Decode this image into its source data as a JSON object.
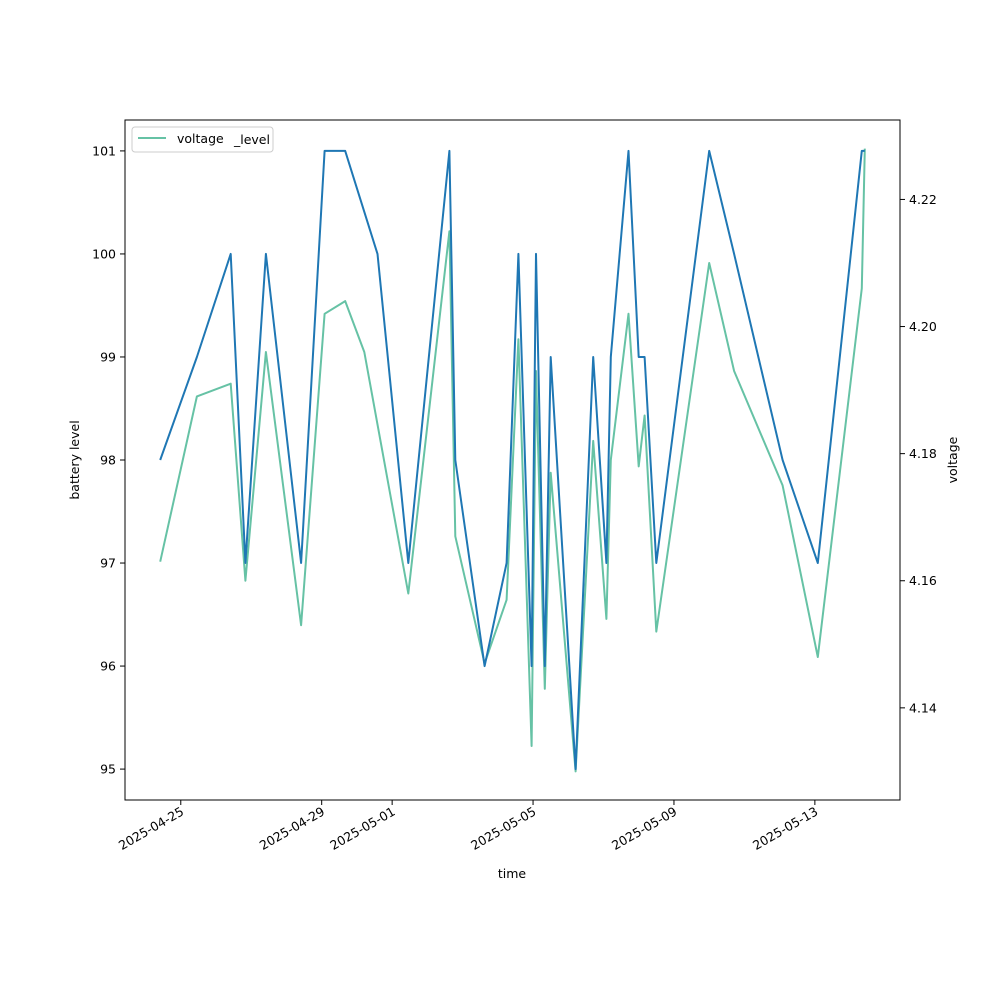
{
  "chart_data": {
    "type": "line",
    "xlabel": "time",
    "ylabel": "battery level",
    "y2label": "voltage",
    "legend": {
      "placement": "upper-left",
      "overlapping_entries": [
        "battery_level",
        "voltage"
      ],
      "visible_text_1": "voltage",
      "visible_text_2": "_level"
    },
    "x_ticks": [
      "2025-04-25",
      "2025-04-29",
      "2025-05-01",
      "2025-05-05",
      "2025-05-09",
      "2025-05-13"
    ],
    "y_ticks": [
      95,
      96,
      97,
      98,
      99,
      100,
      101
    ],
    "y2_ticks": [
      "4.14",
      "4.16",
      "4.18",
      "4.20",
      "4.22"
    ],
    "xlim": [
      "2025-04-23T10:00",
      "2025-05-15T10:00"
    ],
    "ylim": [
      94.7,
      101.3
    ],
    "y2lim": [
      4.1255,
      4.2325
    ],
    "grid": false,
    "series": [
      {
        "name": "battery_level",
        "axis": "left",
        "color": "#1f77b4",
        "x": [
          "2025-04-24T10:00",
          "2025-04-25T11:00",
          "2025-04-26T10:00",
          "2025-04-26T20:00",
          "2025-04-27T10:00",
          "2025-04-28T10:00",
          "2025-04-29T02:00",
          "2025-04-29T16:00",
          "2025-04-30T14:00",
          "2025-05-01T11:00",
          "2025-05-02T15:00",
          "2025-05-02T19:00",
          "2025-05-03T15:00",
          "2025-05-04T06:00",
          "2025-05-04T14:00",
          "2025-05-04T23:00",
          "2025-05-05T02:00",
          "2025-05-05T08:00",
          "2025-05-05T12:00",
          "2025-05-06T05:00",
          "2025-05-06T17:00",
          "2025-05-07T02:00",
          "2025-05-07T05:00",
          "2025-05-07T17:00",
          "2025-05-08T00:00",
          "2025-05-08T04:00",
          "2025-05-08T12:00",
          "2025-05-10T00:00",
          "2025-05-10T17:00",
          "2025-05-12T02:00",
          "2025-05-13T02:00",
          "2025-05-14T08:00",
          "2025-05-14T10:00"
        ],
        "y": [
          98,
          99,
          100,
          97,
          100,
          97,
          101,
          101,
          100,
          97,
          101,
          98,
          96,
          97,
          100,
          96,
          100,
          96,
          99,
          95,
          99,
          97,
          99,
          101,
          99,
          99,
          97,
          101,
          100,
          98,
          97,
          101,
          101
        ]
      },
      {
        "name": "voltage",
        "axis": "right",
        "color": "#66c2a5",
        "x": [
          "2025-04-24T10:00",
          "2025-04-25T11:00",
          "2025-04-26T10:00",
          "2025-04-26T20:00",
          "2025-04-27T10:00",
          "2025-04-28T10:00",
          "2025-04-29T02:00",
          "2025-04-29T16:00",
          "2025-04-30T05:00",
          "2025-05-01T11:00",
          "2025-05-02T15:00",
          "2025-05-02T19:00",
          "2025-05-03T15:00",
          "2025-05-04T06:00",
          "2025-05-04T14:00",
          "2025-05-04T23:00",
          "2025-05-05T02:00",
          "2025-05-05T08:00",
          "2025-05-05T12:00",
          "2025-05-06T05:00",
          "2025-05-06T17:00",
          "2025-05-07T02:00",
          "2025-05-07T05:00",
          "2025-05-07T17:00",
          "2025-05-08T00:00",
          "2025-05-08T04:00",
          "2025-05-08T12:00",
          "2025-05-10T00:00",
          "2025-05-10T17:00",
          "2025-05-12T02:00",
          "2025-05-13T02:00",
          "2025-05-14T08:00",
          "2025-05-14T10:00"
        ],
        "y": [
          4.163,
          4.189,
          4.191,
          4.16,
          4.196,
          4.153,
          4.202,
          4.204,
          4.196,
          4.158,
          4.215,
          4.167,
          4.147,
          4.157,
          4.198,
          4.134,
          4.193,
          4.143,
          4.177,
          4.13,
          4.182,
          4.154,
          4.179,
          4.202,
          4.178,
          4.186,
          4.152,
          4.21,
          4.193,
          4.175,
          4.148,
          4.206,
          4.228
        ]
      }
    ]
  }
}
